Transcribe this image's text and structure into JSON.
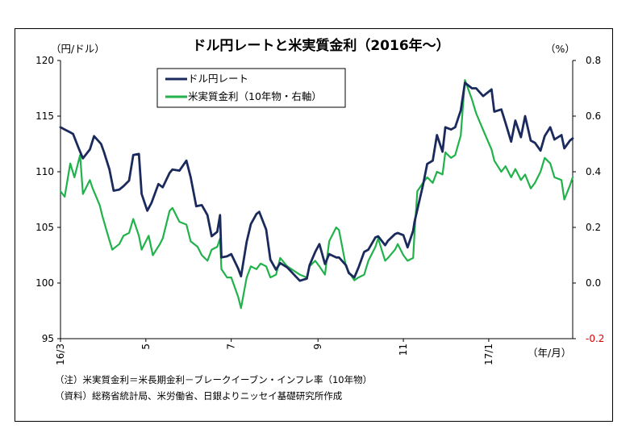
{
  "chart_data": {
    "type": "line",
    "title": "ドル円レートと米実質金利（2016年～）",
    "y_left_unit": "（円/ドル）",
    "y_right_unit": "（%）",
    "x_unit": "（年/月）",
    "ylim_left": [
      95,
      120
    ],
    "ylim_right": [
      -0.2,
      0.8
    ],
    "y_left_ticks": [
      "95",
      "100",
      "105",
      "110",
      "115",
      "120"
    ],
    "y_right_ticks": [
      "-0.2",
      "0.0",
      "0.2",
      "0.4",
      "0.6",
      "0.8"
    ],
    "x_ticks": [
      {
        "label": "16/3",
        "date": "2016-03-01"
      },
      {
        "label": "5",
        "date": "2016-05-01"
      },
      {
        "label": "7",
        "date": "2016-07-01"
      },
      {
        "label": "9",
        "date": "2016-09-01"
      },
      {
        "label": "11",
        "date": "2016-11-01"
      },
      {
        "label": "17/1",
        "date": "2017-01-01"
      }
    ],
    "x_range": [
      "2016-03-01",
      "2017-03-02"
    ],
    "grid": false,
    "legend_position": "top-left",
    "series": [
      {
        "name": "ドル円レート",
        "axis": "left",
        "color": "#1b2a5c",
        "points": [
          [
            "2016-03-01",
            114.0
          ],
          [
            "2016-03-04",
            113.8
          ],
          [
            "2016-03-07",
            113.6
          ],
          [
            "2016-03-10",
            113.4
          ],
          [
            "2016-03-14",
            112.1
          ],
          [
            "2016-03-17",
            111.2
          ],
          [
            "2016-03-22",
            112.0
          ],
          [
            "2016-03-25",
            113.2
          ],
          [
            "2016-03-30",
            112.5
          ],
          [
            "2016-04-01",
            111.8
          ],
          [
            "2016-04-05",
            110.2
          ],
          [
            "2016-04-08",
            108.3
          ],
          [
            "2016-04-12",
            108.4
          ],
          [
            "2016-04-15",
            108.7
          ],
          [
            "2016-04-19",
            109.2
          ],
          [
            "2016-04-22",
            111.5
          ],
          [
            "2016-04-26",
            111.6
          ],
          [
            "2016-04-28",
            108.0
          ],
          [
            "2016-05-02",
            106.5
          ],
          [
            "2016-05-05",
            107.2
          ],
          [
            "2016-05-10",
            108.9
          ],
          [
            "2016-05-13",
            108.6
          ],
          [
            "2016-05-18",
            109.9
          ],
          [
            "2016-05-20",
            110.2
          ],
          [
            "2016-05-25",
            110.1
          ],
          [
            "2016-05-30",
            111.0
          ],
          [
            "2016-06-02",
            109.5
          ],
          [
            "2016-06-06",
            106.9
          ],
          [
            "2016-06-10",
            107.0
          ],
          [
            "2016-06-14",
            106.1
          ],
          [
            "2016-06-17",
            104.2
          ],
          [
            "2016-06-21",
            104.6
          ],
          [
            "2016-06-23",
            106.1
          ],
          [
            "2016-06-24",
            102.3
          ],
          [
            "2016-06-28",
            102.4
          ],
          [
            "2016-07-01",
            102.6
          ],
          [
            "2016-07-06",
            101.3
          ],
          [
            "2016-07-08",
            100.6
          ],
          [
            "2016-07-12",
            103.7
          ],
          [
            "2016-07-15",
            105.3
          ],
          [
            "2016-07-19",
            106.2
          ],
          [
            "2016-07-21",
            106.4
          ],
          [
            "2016-07-26",
            104.8
          ],
          [
            "2016-07-29",
            102.1
          ],
          [
            "2016-08-02",
            101.2
          ],
          [
            "2016-08-05",
            101.8
          ],
          [
            "2016-08-10",
            101.4
          ],
          [
            "2016-08-16",
            100.6
          ],
          [
            "2016-08-19",
            100.2
          ],
          [
            "2016-08-24",
            100.4
          ],
          [
            "2016-08-26",
            101.6
          ],
          [
            "2016-08-30",
            102.8
          ],
          [
            "2016-09-02",
            103.5
          ],
          [
            "2016-09-06",
            101.7
          ],
          [
            "2016-09-09",
            102.6
          ],
          [
            "2016-09-14",
            102.3
          ],
          [
            "2016-09-16",
            102.3
          ],
          [
            "2016-09-21",
            101.6
          ],
          [
            "2016-09-23",
            100.9
          ],
          [
            "2016-09-27",
            100.5
          ],
          [
            "2016-09-30",
            101.4
          ],
          [
            "2016-10-04",
            102.8
          ],
          [
            "2016-10-07",
            103.0
          ],
          [
            "2016-10-12",
            104.1
          ],
          [
            "2016-10-14",
            104.2
          ],
          [
            "2016-10-19",
            103.4
          ],
          [
            "2016-10-21",
            103.8
          ],
          [
            "2016-10-26",
            104.4
          ],
          [
            "2016-10-28",
            104.5
          ],
          [
            "2016-11-01",
            104.3
          ],
          [
            "2016-11-04",
            103.2
          ],
          [
            "2016-11-08",
            104.7
          ],
          [
            "2016-11-09",
            105.5
          ],
          [
            "2016-11-11",
            106.6
          ],
          [
            "2016-11-15",
            108.8
          ],
          [
            "2016-11-18",
            110.7
          ],
          [
            "2016-11-22",
            111.0
          ],
          [
            "2016-11-25",
            113.3
          ],
          [
            "2016-11-29",
            111.8
          ],
          [
            "2016-12-01",
            114.0
          ],
          [
            "2016-12-05",
            113.8
          ],
          [
            "2016-12-08",
            114.0
          ],
          [
            "2016-12-12",
            115.5
          ],
          [
            "2016-12-15",
            118.0
          ],
          [
            "2016-12-20",
            117.5
          ],
          [
            "2016-12-23",
            117.5
          ],
          [
            "2016-12-28",
            116.8
          ],
          [
            "2017-01-03",
            117.4
          ],
          [
            "2017-01-05",
            115.4
          ],
          [
            "2017-01-10",
            115.6
          ],
          [
            "2017-01-13",
            114.4
          ],
          [
            "2017-01-17",
            112.7
          ],
          [
            "2017-01-20",
            114.6
          ],
          [
            "2017-01-24",
            113.1
          ],
          [
            "2017-01-27",
            115.0
          ],
          [
            "2017-01-31",
            112.8
          ],
          [
            "2017-02-03",
            112.6
          ],
          [
            "2017-02-07",
            111.9
          ],
          [
            "2017-02-10",
            113.2
          ],
          [
            "2017-02-14",
            114.0
          ],
          [
            "2017-02-17",
            112.9
          ],
          [
            "2017-02-22",
            113.3
          ],
          [
            "2017-02-24",
            112.1
          ],
          [
            "2017-02-28",
            112.8
          ],
          [
            "2017-03-02",
            113.0
          ]
        ]
      },
      {
        "name": "米実質金利（10年物・右軸）",
        "axis": "right",
        "color": "#21b24b",
        "points": [
          [
            "2016-03-01",
            0.33
          ],
          [
            "2016-03-04",
            0.31
          ],
          [
            "2016-03-08",
            0.43
          ],
          [
            "2016-03-11",
            0.38
          ],
          [
            "2016-03-15",
            0.46
          ],
          [
            "2016-03-17",
            0.32
          ],
          [
            "2016-03-22",
            0.37
          ],
          [
            "2016-03-24",
            0.34
          ],
          [
            "2016-03-29",
            0.28
          ],
          [
            "2016-03-31",
            0.24
          ],
          [
            "2016-04-04",
            0.17
          ],
          [
            "2016-04-07",
            0.12
          ],
          [
            "2016-04-12",
            0.14
          ],
          [
            "2016-04-15",
            0.17
          ],
          [
            "2016-04-19",
            0.18
          ],
          [
            "2016-04-22",
            0.23
          ],
          [
            "2016-04-26",
            0.17
          ],
          [
            "2016-04-28",
            0.12
          ],
          [
            "2016-05-03",
            0.17
          ],
          [
            "2016-05-06",
            0.1
          ],
          [
            "2016-05-11",
            0.14
          ],
          [
            "2016-05-13",
            0.16
          ],
          [
            "2016-05-18",
            0.26
          ],
          [
            "2016-05-20",
            0.27
          ],
          [
            "2016-05-25",
            0.22
          ],
          [
            "2016-05-30",
            0.21
          ],
          [
            "2016-06-02",
            0.15
          ],
          [
            "2016-06-07",
            0.13
          ],
          [
            "2016-06-10",
            0.1
          ],
          [
            "2016-06-14",
            0.08
          ],
          [
            "2016-06-17",
            0.12
          ],
          [
            "2016-06-21",
            0.13
          ],
          [
            "2016-06-23",
            0.16
          ],
          [
            "2016-06-24",
            0.05
          ],
          [
            "2016-06-28",
            0.02
          ],
          [
            "2016-07-01",
            0.02
          ],
          [
            "2016-07-06",
            -0.05
          ],
          [
            "2016-07-08",
            -0.09
          ],
          [
            "2016-07-12",
            0.02
          ],
          [
            "2016-07-15",
            0.06
          ],
          [
            "2016-07-19",
            0.05
          ],
          [
            "2016-07-22",
            0.07
          ],
          [
            "2016-07-26",
            0.06
          ],
          [
            "2016-07-29",
            0.02
          ],
          [
            "2016-08-02",
            0.03
          ],
          [
            "2016-08-05",
            0.09
          ],
          [
            "2016-08-10",
            0.06
          ],
          [
            "2016-08-16",
            0.04
          ],
          [
            "2016-08-19",
            0.03
          ],
          [
            "2016-08-24",
            0.02
          ],
          [
            "2016-08-26",
            0.06
          ],
          [
            "2016-08-30",
            0.08
          ],
          [
            "2016-09-02",
            0.06
          ],
          [
            "2016-09-06",
            0.03
          ],
          [
            "2016-09-09",
            0.15
          ],
          [
            "2016-09-14",
            0.2
          ],
          [
            "2016-09-16",
            0.19
          ],
          [
            "2016-09-21",
            0.06
          ],
          [
            "2016-09-23",
            0.04
          ],
          [
            "2016-09-27",
            0.01
          ],
          [
            "2016-09-30",
            0.02
          ],
          [
            "2016-10-04",
            0.03
          ],
          [
            "2016-10-07",
            0.08
          ],
          [
            "2016-10-12",
            0.13
          ],
          [
            "2016-10-14",
            0.16
          ],
          [
            "2016-10-19",
            0.08
          ],
          [
            "2016-10-21",
            0.09
          ],
          [
            "2016-10-26",
            0.12
          ],
          [
            "2016-10-28",
            0.14
          ],
          [
            "2016-11-01",
            0.1
          ],
          [
            "2016-11-04",
            0.08
          ],
          [
            "2016-11-08",
            0.09
          ],
          [
            "2016-11-09",
            0.18
          ],
          [
            "2016-11-11",
            0.33
          ],
          [
            "2016-11-15",
            0.36
          ],
          [
            "2016-11-18",
            0.38
          ],
          [
            "2016-11-22",
            0.36
          ],
          [
            "2016-11-25",
            0.4
          ],
          [
            "2016-11-29",
            0.39
          ],
          [
            "2016-12-01",
            0.47
          ],
          [
            "2016-12-05",
            0.45
          ],
          [
            "2016-12-08",
            0.46
          ],
          [
            "2016-12-12",
            0.53
          ],
          [
            "2016-12-15",
            0.73
          ],
          [
            "2016-12-20",
            0.66
          ],
          [
            "2016-12-23",
            0.61
          ],
          [
            "2016-12-28",
            0.55
          ],
          [
            "2017-01-03",
            0.48
          ],
          [
            "2017-01-05",
            0.44
          ],
          [
            "2017-01-10",
            0.4
          ],
          [
            "2017-01-13",
            0.42
          ],
          [
            "2017-01-17",
            0.38
          ],
          [
            "2017-01-20",
            0.41
          ],
          [
            "2017-01-24",
            0.37
          ],
          [
            "2017-01-27",
            0.39
          ],
          [
            "2017-01-31",
            0.34
          ],
          [
            "2017-02-03",
            0.36
          ],
          [
            "2017-02-07",
            0.4
          ],
          [
            "2017-02-10",
            0.45
          ],
          [
            "2017-02-14",
            0.43
          ],
          [
            "2017-02-17",
            0.38
          ],
          [
            "2017-02-22",
            0.37
          ],
          [
            "2017-02-24",
            0.3
          ],
          [
            "2017-02-28",
            0.35
          ],
          [
            "2017-03-02",
            0.38
          ]
        ]
      }
    ]
  },
  "notes": {
    "note": "（注）米実質金利＝米長期金利－ブレークイーブン・インフレ率（10年物）",
    "source": "（資料）総務省統計局、米労働省、日銀よりニッセイ基礎研究所作成"
  }
}
